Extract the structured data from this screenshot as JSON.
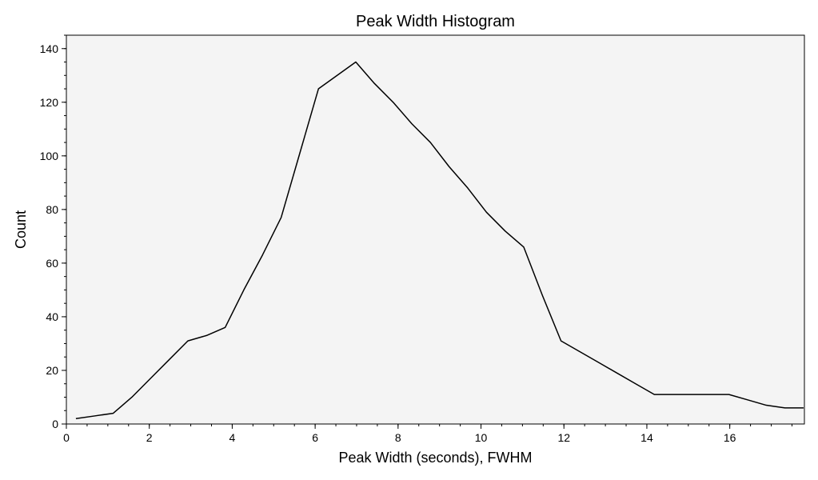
{
  "chart_data": {
    "type": "line",
    "title": "Peak Width Histogram",
    "xlabel": "Peak Width (seconds), FWHM",
    "ylabel": "Count",
    "xlim": [
      0,
      17.8
    ],
    "ylim": [
      0,
      145
    ],
    "x_ticks": [
      0,
      2,
      4,
      6,
      8,
      10,
      12,
      14,
      16
    ],
    "y_ticks": [
      0,
      20,
      40,
      60,
      80,
      100,
      120,
      140
    ],
    "x_minor_step": 0.5,
    "y_minor_step": 5,
    "grid": false,
    "legend": "none",
    "colors": {
      "plot_background": "#f4f4f4",
      "line": "#000000",
      "axes": "#000000"
    },
    "series": [
      {
        "x": [
          0.23,
          0.68,
          1.13,
          1.58,
          2.03,
          2.48,
          2.93,
          3.38,
          3.83,
          4.28,
          4.73,
          5.18,
          5.63,
          6.08,
          6.53,
          6.98,
          7.43,
          7.88,
          8.33,
          8.78,
          9.23,
          9.68,
          10.13,
          10.58,
          11.03,
          11.48,
          11.93,
          12.38,
          12.83,
          13.28,
          13.73,
          14.18,
          14.63,
          15.08,
          15.53,
          15.98,
          16.43,
          16.88,
          17.33,
          17.78
        ],
        "y": [
          2,
          3,
          4,
          10,
          17,
          24,
          31,
          33,
          36,
          50,
          63,
          77,
          101,
          125,
          130,
          135,
          127,
          120,
          112,
          105,
          96,
          88,
          79,
          72,
          66,
          48,
          31,
          27,
          23,
          19,
          15,
          11,
          11,
          11,
          11,
          11,
          9,
          7,
          6,
          6
        ]
      }
    ]
  }
}
